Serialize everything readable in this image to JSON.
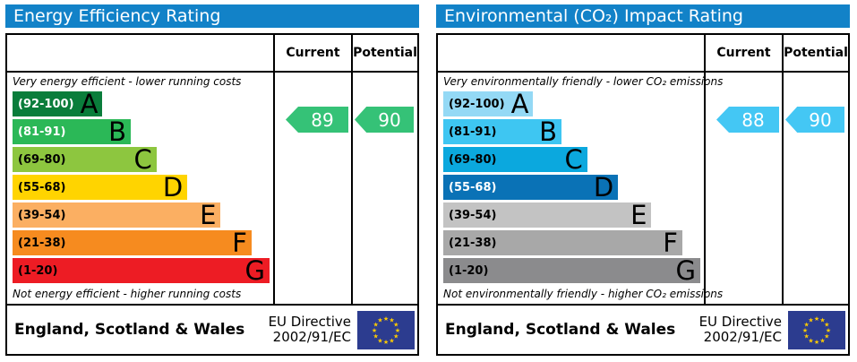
{
  "colors": {
    "header_bg": "#1282c8",
    "header_text": "#ffffff",
    "border": "#000000",
    "eu_flag_bg": "#2c3c8f",
    "eu_flag_star": "#ffcc00"
  },
  "footer": {
    "region": "England, Scotland & Wales",
    "directive_line1": "EU Directive",
    "directive_line2": "2002/91/EC"
  },
  "panels": [
    {
      "title": "Energy Efficiency Rating",
      "columns": {
        "current": "Current",
        "potential": "Potential"
      },
      "top_caption": "Very energy efficient - lower running costs",
      "bottom_caption": "Not energy efficient - higher running costs",
      "bands": [
        {
          "letter": "A",
          "range": "(92-100)",
          "color": "#0a7d3b",
          "range_label_color": "#ffffff",
          "bar_length_pct": 35
        },
        {
          "letter": "B",
          "range": "(81-91)",
          "color": "#2bb857",
          "range_label_color": "#ffffff",
          "bar_length_pct": 46
        },
        {
          "letter": "C",
          "range": "(69-80)",
          "color": "#8dc63f",
          "range_label_color": "#000000",
          "bar_length_pct": 56
        },
        {
          "letter": "D",
          "range": "(55-68)",
          "color": "#ffd400",
          "range_label_color": "#000000",
          "bar_length_pct": 68
        },
        {
          "letter": "E",
          "range": "(39-54)",
          "color": "#fbaf62",
          "range_label_color": "#000000",
          "bar_length_pct": 81
        },
        {
          "letter": "F",
          "range": "(21-38)",
          "color": "#f68b1f",
          "range_label_color": "#000000",
          "bar_length_pct": 93
        },
        {
          "letter": "G",
          "range": "(1-20)",
          "color": "#ed1c24",
          "range_label_color": "#000000",
          "bar_length_pct": 100
        }
      ],
      "current": {
        "value": "89",
        "color": "#35c277"
      },
      "potential": {
        "value": "90",
        "color": "#35c277"
      }
    },
    {
      "title": "Environmental (CO₂) Impact Rating",
      "columns": {
        "current": "Current",
        "potential": "Potential"
      },
      "top_caption": "Very environmentally friendly - lower CO₂ emissions",
      "bottom_caption": "Not environmentally friendly - higher CO₂ emissions",
      "bands": [
        {
          "letter": "A",
          "range": "(92-100)",
          "color": "#94d9f5",
          "range_label_color": "#000000",
          "bar_length_pct": 35
        },
        {
          "letter": "B",
          "range": "(81-91)",
          "color": "#3ec6f2",
          "range_label_color": "#000000",
          "bar_length_pct": 46
        },
        {
          "letter": "C",
          "range": "(69-80)",
          "color": "#0ba8de",
          "range_label_color": "#000000",
          "bar_length_pct": 56
        },
        {
          "letter": "D",
          "range": "(55-68)",
          "color": "#0a72b6",
          "range_label_color": "#ffffff",
          "bar_length_pct": 68
        },
        {
          "letter": "E",
          "range": "(39-54)",
          "color": "#c3c3c3",
          "range_label_color": "#000000",
          "bar_length_pct": 81
        },
        {
          "letter": "F",
          "range": "(21-38)",
          "color": "#a8a8a8",
          "range_label_color": "#000000",
          "bar_length_pct": 93
        },
        {
          "letter": "G",
          "range": "(1-20)",
          "color": "#8b8b8d",
          "range_label_color": "#000000",
          "bar_length_pct": 100
        }
      ],
      "current": {
        "value": "88",
        "color": "#44c7f4"
      },
      "potential": {
        "value": "90",
        "color": "#44c7f4"
      }
    }
  ],
  "chart_data": [
    {
      "type": "bar",
      "title": "Energy Efficiency Rating",
      "categories": [
        "A (92-100)",
        "B (81-91)",
        "C (69-80)",
        "D (55-68)",
        "E (39-54)",
        "F (21-38)",
        "G (1-20)"
      ],
      "values": [
        35,
        46,
        56,
        68,
        81,
        93,
        100
      ],
      "ylabel": "band bar length (% of scale column)",
      "current": 89,
      "potential": 90,
      "annotations": [
        "Very energy efficient - lower running costs",
        "Not energy efficient - higher running costs"
      ]
    },
    {
      "type": "bar",
      "title": "Environmental (CO₂) Impact Rating",
      "categories": [
        "A (92-100)",
        "B (81-91)",
        "C (69-80)",
        "D (55-68)",
        "E (39-54)",
        "F (21-38)",
        "G (1-20)"
      ],
      "values": [
        35,
        46,
        56,
        68,
        81,
        93,
        100
      ],
      "ylabel": "band bar length (% of scale column)",
      "current": 88,
      "potential": 90,
      "annotations": [
        "Very environmentally friendly - lower CO₂ emissions",
        "Not environmentally friendly - higher CO₂ emissions"
      ]
    }
  ]
}
